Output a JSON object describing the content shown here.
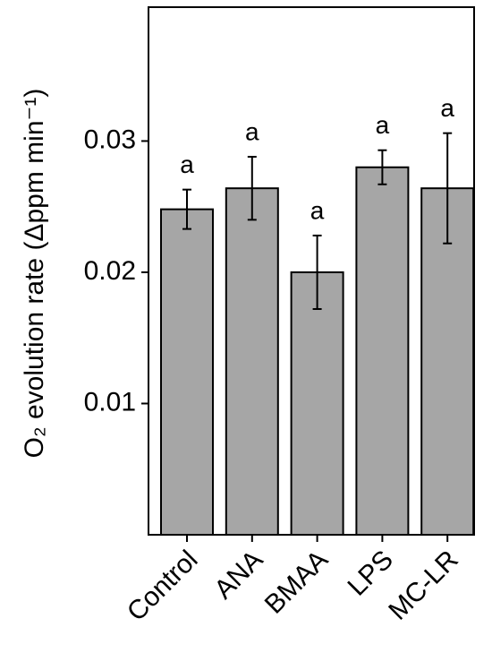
{
  "chart_data": {
    "type": "bar",
    "y_label": "O₂ evolution rate (Δppm min⁻¹)",
    "categories": [
      "Control",
      "ANA",
      "BMAA",
      "LPS",
      "MC-LR"
    ],
    "values": [
      0.0248,
      0.0264,
      0.02,
      0.028,
      0.0264
    ],
    "errors": [
      0.0015,
      0.0024,
      0.0028,
      0.0013,
      0.0042
    ],
    "annotations": [
      "a",
      "a",
      "a",
      "a",
      "a"
    ],
    "color": "#a6a6a6",
    "ylim": [
      0,
      0.0402
    ],
    "yticks": [
      0.01,
      0.02,
      0.03
    ],
    "grid": false
  }
}
